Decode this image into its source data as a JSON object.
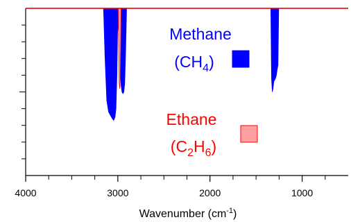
{
  "chart_data": {
    "type": "area",
    "title": "",
    "xlabel": {
      "text": "Wavenumber (cm",
      "sup": "-1",
      "close": ")"
    },
    "ylabel": "",
    "x_reversed": true,
    "xlim": [
      4000,
      500
    ],
    "ylim": [
      0,
      1
    ],
    "x_ticks_major": [
      4000,
      3000,
      2000,
      1000
    ],
    "x_ticks_major_labels": [
      "4000",
      "3000",
      "2000",
      "1000"
    ],
    "x_ticks_minor": [
      3750,
      3500,
      3250,
      2750,
      2500,
      2250,
      1750,
      1500,
      1250,
      750
    ],
    "y_ticks_minor": [
      0.1,
      0.2,
      0.3,
      0.4,
      0.5,
      0.6,
      0.7,
      0.8,
      0.9
    ],
    "y_ticks_major": [
      0.5
    ],
    "grid": false,
    "legend_placement": "center-right",
    "series": [
      {
        "name_parts": [
          {
            "t": "Methane"
          }
        ],
        "formula_parts": [
          {
            "t": "(CH"
          },
          {
            "t": "4",
            "sub": true
          },
          {
            "t": ")"
          }
        ],
        "color": "#0000ff",
        "fill": "#0000ff",
        "points": [
          [
            3155,
            1.0
          ],
          [
            3140,
            0.72
          ],
          [
            3120,
            0.45
          ],
          [
            3100,
            0.38
          ],
          [
            3080,
            0.36
          ],
          [
            3060,
            0.34
          ],
          [
            3045,
            0.33
          ],
          [
            3030,
            0.35
          ],
          [
            3020,
            0.4
          ],
          [
            3010,
            0.6
          ],
          [
            3000,
            0.95
          ],
          [
            2995,
            0.88
          ],
          [
            2985,
            0.8
          ],
          [
            2975,
            0.65
          ],
          [
            2965,
            0.54
          ],
          [
            2955,
            0.5
          ],
          [
            2945,
            0.49
          ],
          [
            2935,
            0.5
          ],
          [
            2925,
            0.55
          ],
          [
            2915,
            0.75
          ],
          [
            2905,
            1.0
          ],
          [
            1340,
            1.0
          ],
          [
            1332,
            0.58
          ],
          [
            1324,
            0.5
          ],
          [
            1316,
            0.52
          ],
          [
            1308,
            0.56
          ],
          [
            1300,
            0.57
          ],
          [
            1290,
            0.58
          ],
          [
            1280,
            0.6
          ],
          [
            1272,
            0.63
          ],
          [
            1262,
            0.66
          ],
          [
            1254,
            1.0
          ]
        ]
      },
      {
        "name_parts": [
          {
            "t": "Ethane"
          }
        ],
        "formula_parts": [
          {
            "t": "(C"
          },
          {
            "t": "2",
            "sub": true
          },
          {
            "t": "H"
          },
          {
            "t": "6",
            "sub": true
          },
          {
            "t": ")"
          }
        ],
        "color": "#ff0000",
        "fill": "#ffa0a0",
        "points": [
          [
            2995,
            1.0
          ],
          [
            2990,
            0.75
          ],
          [
            2985,
            0.55
          ],
          [
            2980,
            0.52
          ],
          [
            2975,
            0.56
          ],
          [
            2970,
            0.75
          ],
          [
            2965,
            1.0
          ]
        ]
      }
    ]
  }
}
